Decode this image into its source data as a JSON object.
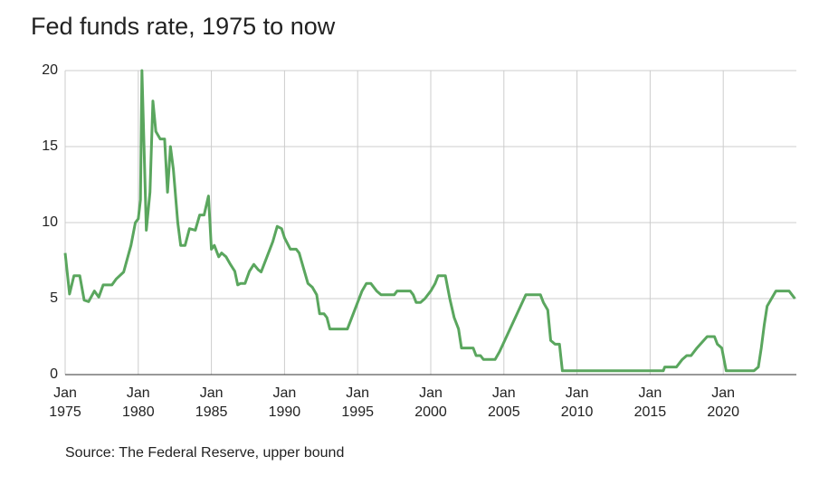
{
  "chart_data": {
    "type": "line",
    "title": "Fed funds rate, 1975 to now",
    "source": "Source: The Federal Reserve, upper bound",
    "color": "#5aa65e",
    "grid": true,
    "xlim": [
      1975,
      2025
    ],
    "xticks": [
      {
        "value": 1975,
        "label": "Jan 1975"
      },
      {
        "value": 1980,
        "label": "Jan 1980"
      },
      {
        "value": 1985,
        "label": "Jan 1985"
      },
      {
        "value": 1990,
        "label": "Jan 1990"
      },
      {
        "value": 1995,
        "label": "Jan 1995"
      },
      {
        "value": 2000,
        "label": "Jan 2000"
      },
      {
        "value": 2005,
        "label": "Jan 2005"
      },
      {
        "value": 2010,
        "label": "Jan 2010"
      },
      {
        "value": 2015,
        "label": "Jan 2015"
      },
      {
        "value": 2020,
        "label": "Jan 2020"
      }
    ],
    "ylim": [
      0,
      20
    ],
    "yticks": [
      0,
      5,
      10,
      15,
      20
    ],
    "x": [
      1975.0,
      1975.3,
      1975.6,
      1976.0,
      1976.3,
      1976.6,
      1977.0,
      1977.3,
      1977.6,
      1978.2,
      1978.5,
      1979.0,
      1979.5,
      1979.8,
      1980.0,
      1980.15,
      1980.25,
      1980.55,
      1980.8,
      1981.0,
      1981.2,
      1981.5,
      1981.8,
      1982.0,
      1982.2,
      1982.4,
      1982.7,
      1982.9,
      1983.2,
      1983.5,
      1983.9,
      1984.2,
      1984.5,
      1984.8,
      1985.0,
      1985.2,
      1985.5,
      1985.7,
      1986.0,
      1986.3,
      1986.6,
      1986.8,
      1987.0,
      1987.3,
      1987.6,
      1987.9,
      1988.2,
      1988.4,
      1988.8,
      1989.0,
      1989.2,
      1989.5,
      1989.8,
      1990.0,
      1990.4,
      1990.8,
      1991.0,
      1991.3,
      1991.6,
      1991.9,
      1992.2,
      1992.4,
      1992.7,
      1992.9,
      1993.1,
      1994.3,
      1994.5,
      1994.8,
      1995.0,
      1995.3,
      1995.6,
      1995.9,
      1996.3,
      1996.6,
      1997.5,
      1997.7,
      1998.6,
      1998.8,
      1999.0,
      1999.3,
      1999.6,
      2000.0,
      2000.3,
      2000.5,
      2001.0,
      2001.3,
      2001.6,
      2001.9,
      2002.1,
      2002.9,
      2003.1,
      2003.4,
      2003.6,
      2004.4,
      2004.7,
      2006.5,
      2007.5,
      2007.7,
      2008.0,
      2008.2,
      2008.5,
      2008.8,
      2009.0,
      2015.9,
      2016.0,
      2016.8,
      2017.2,
      2017.5,
      2017.8,
      2018.2,
      2018.9,
      2019.4,
      2019.6,
      2019.9,
      2020.2,
      2022.1,
      2022.4,
      2022.6,
      2022.8,
      2023.0,
      2023.3,
      2023.6,
      2024.5,
      2024.9
    ],
    "values": [
      8,
      5.3,
      6.5,
      6.5,
      4.9,
      4.8,
      5.5,
      5.1,
      5.9,
      5.9,
      6.3,
      6.75,
      8.5,
      10,
      10.25,
      11.5,
      20,
      9.5,
      12,
      18,
      16,
      15.5,
      15.5,
      12,
      15,
      13.5,
      10,
      8.5,
      8.5,
      9.6,
      9.5,
      10.5,
      10.5,
      11.75,
      8.25,
      8.5,
      7.75,
      8,
      7.75,
      7.25,
      6.8,
      5.9,
      6,
      6,
      6.8,
      7.25,
      6.9,
      6.75,
      7.75,
      8.25,
      8.75,
      9.75,
      9.6,
      9,
      8.25,
      8.25,
      8,
      7,
      6,
      5.75,
      5.25,
      4,
      4,
      3.75,
      3,
      3,
      3.5,
      4.25,
      4.75,
      5.5,
      6,
      6,
      5.5,
      5.25,
      5.25,
      5.5,
      5.5,
      5.25,
      4.75,
      4.75,
      5,
      5.5,
      6,
      6.5,
      6.5,
      5,
      3.75,
      3,
      1.75,
      1.75,
      1.25,
      1.25,
      1,
      1,
      1.5,
      5.25,
      5.25,
      4.75,
      4.25,
      2.25,
      2,
      2,
      0.25,
      0.25,
      0.5,
      0.5,
      1,
      1.25,
      1.25,
      1.75,
      2.5,
      2.5,
      2,
      1.75,
      0.25,
      0.25,
      0.5,
      1.75,
      3.25,
      4.5,
      5,
      5.5,
      5.5,
      5
    ]
  }
}
